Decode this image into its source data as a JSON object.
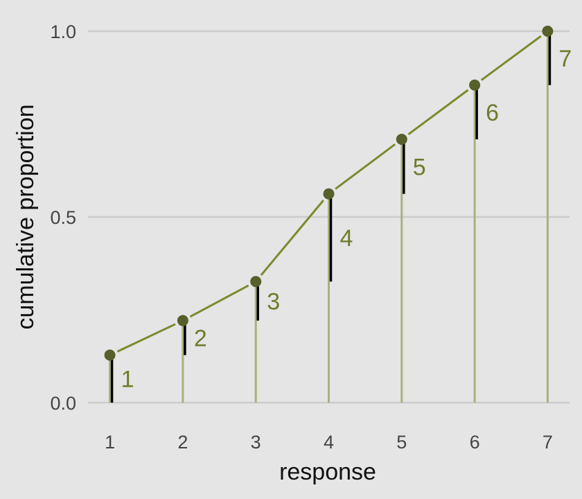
{
  "chart_data": {
    "type": "line",
    "title": "",
    "xlabel": "response",
    "ylabel": "cumulative proportion",
    "x": [
      1,
      2,
      3,
      4,
      5,
      6,
      7
    ],
    "x_tick_labels": [
      "1",
      "2",
      "3",
      "4",
      "5",
      "6",
      "7"
    ],
    "y_ticks": [
      0.0,
      0.5,
      1.0
    ],
    "y_tick_labels": [
      "0.0",
      "0.5",
      "1.0"
    ],
    "xlim": [
      0.7,
      7.3
    ],
    "ylim": [
      0.0,
      1.0
    ],
    "series": [
      {
        "values": [
          0.128,
          0.221,
          0.326,
          0.562,
          0.709,
          0.855,
          1.0
        ]
      }
    ],
    "point_labels": [
      "1",
      "2",
      "3",
      "4",
      "5",
      "6",
      "7"
    ],
    "grid": "horizontal",
    "legend": "none",
    "colors": {
      "background": "#e5e5e5",
      "grid": "#cccccc",
      "line": "#7b8a2c",
      "point": "#55602a",
      "stem": "#a9b17a",
      "increment": "#000000",
      "label": "#6f7c2b"
    }
  }
}
